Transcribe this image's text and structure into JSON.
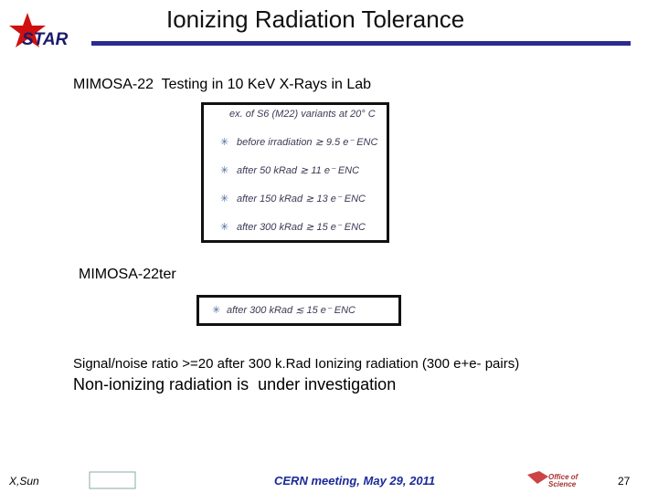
{
  "header": {
    "logo": "STAR",
    "title": "Ionizing Radiation Tolerance"
  },
  "section1": {
    "heading": "MIMOSA-22  Testing in 10 KeV X-Rays in Lab",
    "box": {
      "caption": "ex. of S6 (M22) variants at 20° C",
      "items": [
        "before irradiation ≳ 9.5 e⁻ ENC",
        "after 50 kRad ≳ 11 e⁻ ENC",
        "after 150 kRad ≳ 13 e⁻ ENC",
        "after 300 kRad ≳ 15 e⁻ ENC"
      ]
    }
  },
  "section2": {
    "heading": "MIMOSA-22ter",
    "box": {
      "items": [
        "after 300 kRad ≲ 15 e⁻ ENC"
      ]
    }
  },
  "notes": [
    "Signal/noise ratio >=20 after 300 k.Rad Ionizing radiation (300 e+e- pairs)",
    "Non-ionizing radiation is  under investigation"
  ],
  "footer": {
    "author": "X,Sun",
    "event": "CERN meeting, May 29, 2011",
    "logo": "Office of Science",
    "page": "27"
  }
}
